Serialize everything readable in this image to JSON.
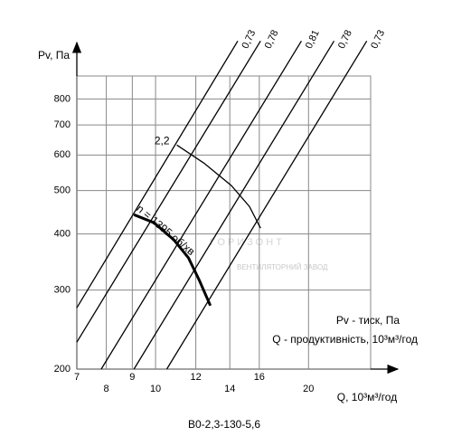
{
  "chart_data": {
    "type": "line",
    "title": "В0-2,3-130-5,6",
    "y_label": "Pv, Па",
    "x_label": "Q, 10³м³/год",
    "legend_lines": [
      "Pv - тиск, Па",
      "Q - продуктивність, 10³м³/год"
    ],
    "watermark": "ГОРИЗОНТ",
    "watermark_subtitle": "ВЕНТИЛЯТОРНИЙ ЗАВОД",
    "log_x": true,
    "log_y": true,
    "grid": true,
    "xlim": [
      7,
      26.5
    ],
    "ylim": [
      200,
      900
    ],
    "xticks": [
      7,
      8,
      9,
      10,
      12,
      14,
      16,
      20
    ],
    "yticks": [
      200,
      300,
      400,
      500,
      600,
      700,
      800
    ],
    "series": [
      {
        "name": "0,73",
        "color": "#000000",
        "x": [
          7,
          14.51
        ],
        "values": [
          274,
          1077
        ]
      },
      {
        "name": "0,78",
        "color": "#000000",
        "x": [
          7,
          16.09
        ],
        "values": [
          229.7,
          1077
        ]
      },
      {
        "name": "0,81",
        "color": "#000000",
        "x": [
          7.82,
          19.36
        ],
        "values": [
          200,
          1077
        ]
      },
      {
        "name": "0,78",
        "color": "#000000",
        "x": [
          9.07,
          22.45
        ],
        "values": [
          200,
          1077
        ]
      },
      {
        "name": "0,73",
        "color": "#000000",
        "x": [
          10.52,
          26.04
        ],
        "values": [
          200,
          1077
        ]
      },
      {
        "name": "n = 1395 об/хв",
        "color": "#000000",
        "x": [
          9.07,
          9.93,
          10.87,
          11.61,
          12.2,
          12.82
        ],
        "values": [
          441.8,
          423.9,
          388,
          353.8,
          315,
          277
        ]
      },
      {
        "name": "2,2",
        "color": "#000000",
        "x": [
          11.01,
          12.45,
          14.1,
          15.3,
          16.09
        ],
        "values": [
          631.6,
          575.6,
          512.7,
          460.8,
          412.2
        ]
      }
    ]
  }
}
